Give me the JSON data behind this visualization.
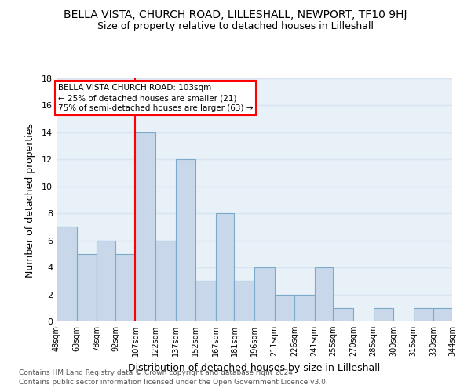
{
  "title": "BELLA VISTA, CHURCH ROAD, LILLESHALL, NEWPORT, TF10 9HJ",
  "subtitle": "Size of property relative to detached houses in Lilleshall",
  "xlabel": "Distribution of detached houses by size in Lilleshall",
  "ylabel": "Number of detached properties",
  "bin_edges": [
    48,
    63,
    78,
    92,
    107,
    122,
    137,
    152,
    167,
    181,
    196,
    211,
    226,
    241,
    255,
    270,
    285,
    300,
    315,
    330,
    344
  ],
  "bin_labels": [
    "48sqm",
    "63sqm",
    "78sqm",
    "92sqm",
    "107sqm",
    "122sqm",
    "137sqm",
    "152sqm",
    "167sqm",
    "181sqm",
    "196sqm",
    "211sqm",
    "226sqm",
    "241sqm",
    "255sqm",
    "270sqm",
    "285sqm",
    "300sqm",
    "315sqm",
    "330sqm",
    "344sqm"
  ],
  "counts": [
    7,
    5,
    6,
    5,
    14,
    6,
    12,
    3,
    8,
    3,
    4,
    2,
    2,
    4,
    1,
    0,
    1,
    0,
    1,
    1
  ],
  "bar_color": "#c8d8ea",
  "bar_edge_color": "#7aaac8",
  "red_line_x": 107,
  "annotation_line1": "BELLA VISTA CHURCH ROAD: 103sqm",
  "annotation_line2": "← 25% of detached houses are smaller (21)",
  "annotation_line3": "75% of semi-detached houses are larger (63) →",
  "ylim": [
    0,
    18
  ],
  "yticks": [
    0,
    2,
    4,
    6,
    8,
    10,
    12,
    14,
    16,
    18
  ],
  "footer_line1": "Contains HM Land Registry data © Crown copyright and database right 2024.",
  "footer_line2": "Contains public sector information licensed under the Open Government Licence v3.0.",
  "background_color": "#ffffff",
  "grid_color": "#d8e4f0",
  "plot_bg_color": "#e8f0f8"
}
